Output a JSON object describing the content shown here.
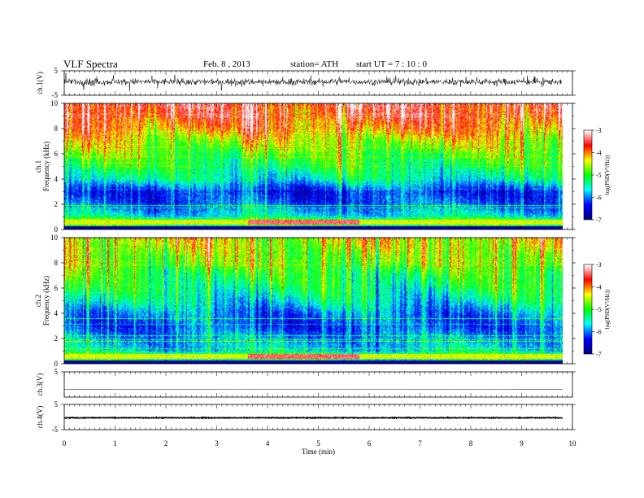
{
  "header": {
    "title": "VLF  Spectra",
    "date": "Feb. 8  , 2013",
    "station": "station= ATH",
    "start": "start  UT  =   7  : 10 : 0"
  },
  "chart_data": [
    {
      "type": "line",
      "name": "ch1-waveform",
      "ylabel": "ch.1(V)",
      "ylim": [
        -5,
        5
      ],
      "y_ticks": [
        "5",
        "-5"
      ],
      "xlim": [
        0,
        10
      ],
      "data_end_min": 9.8,
      "description_values": {
        "baseline_v": 0.5,
        "noise_amplitude_v": 2.5
      }
    },
    {
      "type": "heatmap",
      "name": "ch1-spectrogram",
      "ylabel_channel": "ch.1",
      "ylabel": "Frequency  (kHz)",
      "ylim": [
        0,
        10
      ],
      "y_ticks": [
        "0",
        "2",
        "4",
        "6",
        "8",
        "10"
      ],
      "xlim": [
        0,
        10
      ],
      "data_end_min": 9.8,
      "colorbar": {
        "label": "log(PSD(V²/Hz))",
        "range": [
          -7,
          -3
        ],
        "ticks": [
          "-3",
          "-4",
          "-5",
          "-6",
          "-7"
        ]
      },
      "band_profile_log_psd": [
        {
          "f_khz": 0.0,
          "v": -6.5
        },
        {
          "f_khz": 0.5,
          "v": -4.2
        },
        {
          "f_khz": 1.0,
          "v": -5.6
        },
        {
          "f_khz": 2.0,
          "v": -6.1
        },
        {
          "f_khz": 3.0,
          "v": -6.3
        },
        {
          "f_khz": 4.0,
          "v": -5.5
        },
        {
          "f_khz": 5.0,
          "v": -5.2
        },
        {
          "f_khz": 6.0,
          "v": -4.9
        },
        {
          "f_khz": 7.0,
          "v": -4.5
        },
        {
          "f_khz": 8.0,
          "v": -4.0
        },
        {
          "f_khz": 9.0,
          "v": -3.7
        },
        {
          "f_khz": 10.0,
          "v": -3.5
        }
      ]
    },
    {
      "type": "heatmap",
      "name": "ch2-spectrogram",
      "ylabel_channel": "ch.2",
      "ylabel": "Frequency  (kHz)",
      "ylim": [
        0,
        10
      ],
      "y_ticks": [
        "0",
        "2",
        "4",
        "6",
        "8",
        "10"
      ],
      "xlim": [
        0,
        10
      ],
      "data_end_min": 9.8,
      "colorbar": {
        "label": "log(PSD(V²/Hz))",
        "range": [
          -7,
          -3
        ],
        "ticks": [
          "-3",
          "-4",
          "-5",
          "-6",
          "-7"
        ]
      },
      "band_profile_log_psd": [
        {
          "f_khz": 0.0,
          "v": -6.5
        },
        {
          "f_khz": 0.5,
          "v": -4.4
        },
        {
          "f_khz": 1.0,
          "v": -5.7
        },
        {
          "f_khz": 2.0,
          "v": -5.9
        },
        {
          "f_khz": 3.0,
          "v": -6.2
        },
        {
          "f_khz": 4.0,
          "v": -6.0
        },
        {
          "f_khz": 5.0,
          "v": -5.6
        },
        {
          "f_khz": 6.0,
          "v": -5.3
        },
        {
          "f_khz": 7.0,
          "v": -5.1
        },
        {
          "f_khz": 8.0,
          "v": -4.8
        },
        {
          "f_khz": 9.0,
          "v": -4.6
        },
        {
          "f_khz": 10.0,
          "v": -4.4
        }
      ]
    },
    {
      "type": "line",
      "name": "ch3-waveform",
      "ylabel": "ch.3(V)",
      "ylim": [
        -5,
        5
      ],
      "y_ticks": [
        "5"
      ],
      "xlim": [
        0,
        10
      ],
      "data_end_min": 9.8,
      "description_values": {
        "baseline_v": -2.0,
        "noise_amplitude_v": 0.05
      }
    },
    {
      "type": "line",
      "name": "ch4-waveform",
      "ylabel": "ch.4(V)",
      "ylim": [
        -5,
        5
      ],
      "y_ticks": [
        "5",
        "-5"
      ],
      "xlim": [
        0,
        10
      ],
      "data_end_min": 9.8,
      "description_values": {
        "baseline_v": -0.3,
        "noise_amplitude_v": 0.3
      }
    }
  ],
  "x_axis": {
    "label": "Time  (min)",
    "ticks": [
      "0",
      "1",
      "2",
      "3",
      "4",
      "5",
      "6",
      "7",
      "8",
      "9",
      "10"
    ]
  },
  "colors": {
    "colormap": [
      "#000080",
      "#0000ff",
      "#00ffff",
      "#00ff00",
      "#ffff00",
      "#ff0000",
      "#ffffff"
    ]
  }
}
